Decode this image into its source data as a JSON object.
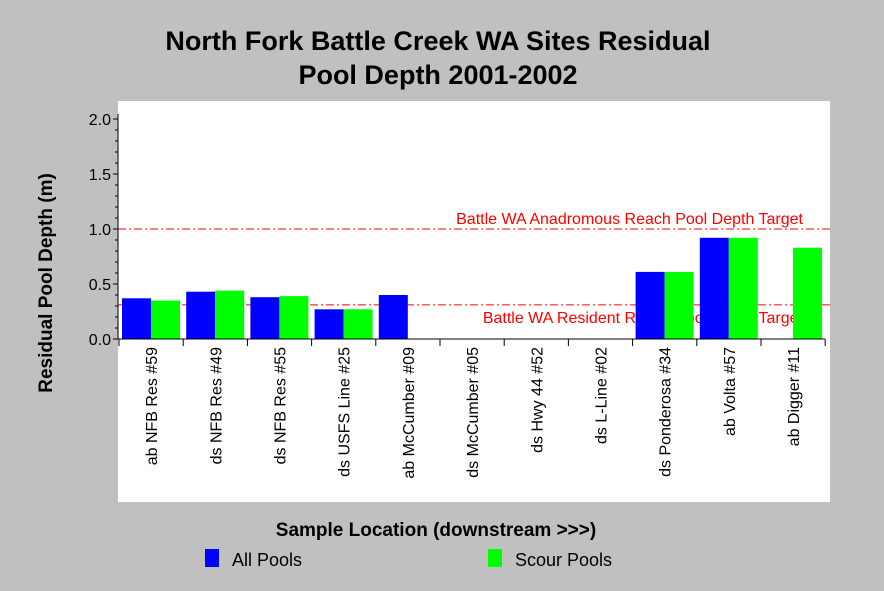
{
  "chart_data": {
    "type": "bar",
    "title_line1": "North Fork Battle Creek WA Sites Residual",
    "title_line2": "Pool Depth 2001-2002",
    "xlabel": "Sample Location (downstream >>>)",
    "ylabel": "Residual Pool Depth (m)",
    "ylim": [
      0,
      2.0
    ],
    "yticks": [
      "0.0",
      "0.5",
      "1.0",
      "1.5",
      "2.0"
    ],
    "ytick_values": [
      0,
      0.5,
      1.0,
      1.5,
      2.0
    ],
    "grid": false,
    "legend_placement": "bottom",
    "categories": [
      "ab NFB Res #59",
      "ds NFB Res #49",
      "ds NFB Res #55",
      "ds USFS Line #25",
      "ab McCumber #09",
      "ds McCumber #05",
      "ds Hwy 44 #52",
      "ds L-Line #02",
      "ds Ponderosa #34",
      "ab Volta #57",
      "ab Digger #11"
    ],
    "series": [
      {
        "name": "All Pools",
        "color": "#0000ff",
        "values": [
          0.37,
          0.43,
          0.38,
          0.27,
          0.4,
          null,
          null,
          null,
          0.61,
          0.92,
          null
        ]
      },
      {
        "name": "Scour Pools",
        "color": "#00ff00",
        "values": [
          0.35,
          0.44,
          0.39,
          0.27,
          null,
          null,
          null,
          null,
          0.61,
          0.92,
          0.83
        ]
      }
    ],
    "reference_lines": [
      {
        "label": "Battle WA Anadromous Reach Pool Depth Target",
        "value": 1.0,
        "color": "#ff0000"
      },
      {
        "label": "Battle WA Resident Reach Pool Depth Target",
        "value": 0.31,
        "color": "#ff0000"
      }
    ]
  }
}
